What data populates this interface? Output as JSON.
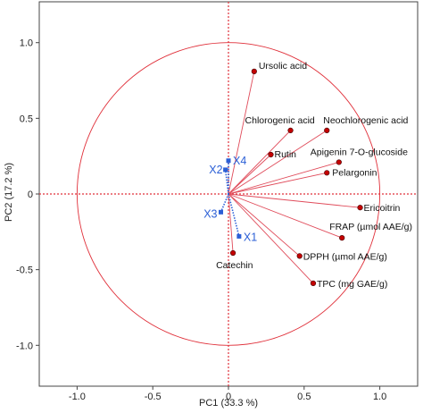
{
  "colors": {
    "variables": "#e04b5a",
    "variable_point": "#c40000",
    "observations": "#2b5fd6",
    "axis": "#333333",
    "zero_lines": "#e0303a"
  },
  "chart_data": {
    "type": "scatter",
    "title": "",
    "xlabel": "PC1  (33.3 %)",
    "ylabel": "PC2  (17.2 %)",
    "xlim": [
      -1.25,
      1.25
    ],
    "ylim": [
      -1.27,
      1.27
    ],
    "xticks": [
      -1.0,
      -0.5,
      0,
      0.5,
      1.0
    ],
    "xtick_labels": [
      "-1.0",
      "-0.5",
      "0",
      "0.5",
      "1.0"
    ],
    "yticks": [
      -1.0,
      -0.5,
      0,
      0.5,
      1.0
    ],
    "ytick_labels": [
      "-1.0",
      "-0.5",
      "0",
      "0.5",
      "1.0"
    ],
    "correlation_circle_radius": 1.0,
    "grid": false,
    "variables": [
      {
        "name": "Ursolic acid",
        "x": 0.17,
        "y": 0.81
      },
      {
        "name": "Chlorogenic acid",
        "x": 0.41,
        "y": 0.42
      },
      {
        "name": "Neochlorogenic acid",
        "x": 0.65,
        "y": 0.42
      },
      {
        "name": "Rutin",
        "x": 0.28,
        "y": 0.26
      },
      {
        "name": "Apigenin 7-O-glucoside",
        "x": 0.73,
        "y": 0.21
      },
      {
        "name": "Pelargonin",
        "x": 0.65,
        "y": 0.14
      },
      {
        "name": "Ericoitrin",
        "x": 0.87,
        "y": -0.09
      },
      {
        "name": "FRAP (µmol AAE/g)",
        "x": 0.75,
        "y": -0.29
      },
      {
        "name": "DPPH (µmol AAE/g)",
        "x": 0.47,
        "y": -0.41
      },
      {
        "name": "TPC (mg GAE/g)",
        "x": 0.56,
        "y": -0.59
      },
      {
        "name": "Catechin",
        "x": 0.03,
        "y": -0.39
      }
    ],
    "observations": [
      {
        "name": "X4",
        "x": 0.0,
        "y": 0.22
      },
      {
        "name": "X2",
        "x": -0.02,
        "y": 0.16
      },
      {
        "name": "X3",
        "x": -0.05,
        "y": -0.12
      },
      {
        "name": "X1",
        "x": 0.07,
        "y": -0.28
      }
    ]
  }
}
